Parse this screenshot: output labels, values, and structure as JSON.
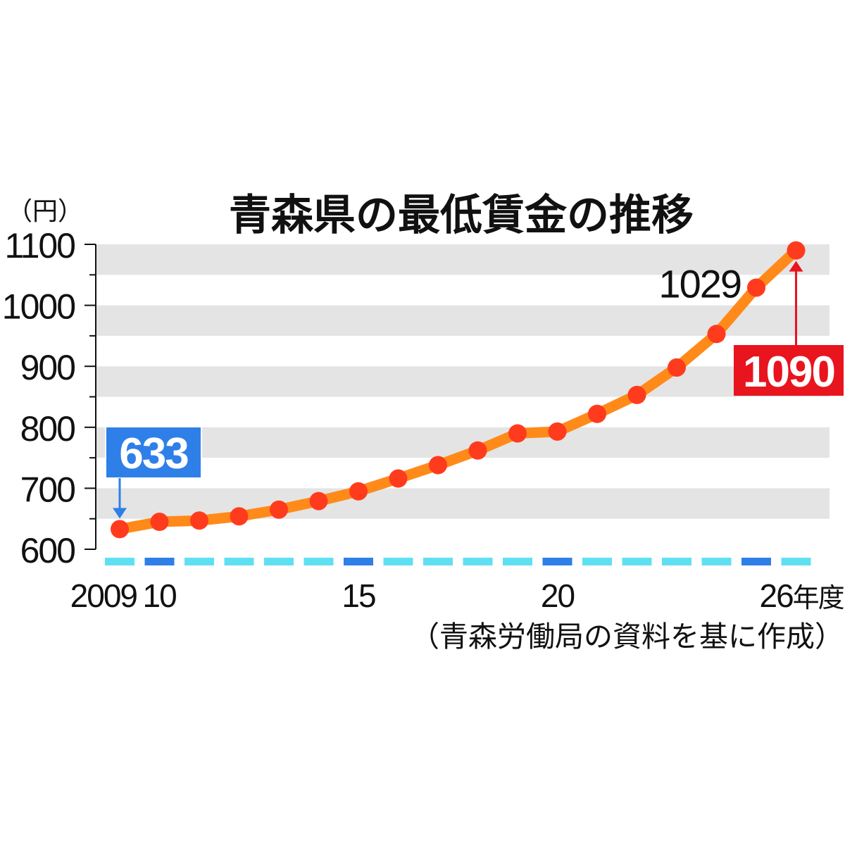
{
  "chart_data": {
    "type": "line",
    "title": "青森県の最低賃金の推移",
    "y_unit": "（円）",
    "source_note": "（青森労働局の資料を基に作成）",
    "x": [
      2009,
      2010,
      2011,
      2012,
      2013,
      2014,
      2015,
      2016,
      2017,
      2018,
      2019,
      2020,
      2021,
      2022,
      2023,
      2024,
      2025,
      2026
    ],
    "values": [
      633,
      645,
      647,
      654,
      665,
      679,
      695,
      716,
      738,
      762,
      790,
      793,
      822,
      853,
      898,
      953,
      1029,
      1090
    ],
    "ylim": [
      600,
      1100
    ],
    "y_ticks": [
      600,
      700,
      800,
      900,
      1000,
      1100
    ],
    "x_tick_labels": [
      {
        "x": 2009,
        "label": "2009"
      },
      {
        "x": 2010,
        "label": "10"
      },
      {
        "x": 2015,
        "label": "15"
      },
      {
        "x": 2020,
        "label": "20"
      },
      {
        "x": 2026,
        "label": "26",
        "suffix": "年度"
      }
    ],
    "annotations": {
      "start": {
        "x": 2009,
        "label": "633",
        "color": "#2f7fe8"
      },
      "prev": {
        "x": 2025,
        "label": "1029"
      },
      "end": {
        "x": 2026,
        "label": "1090",
        "color": "#e8141e"
      }
    },
    "line_color": "#ff8a1a",
    "marker_color": "#ff3b1e",
    "band_color": "#e4e4e4",
    "grid": "horizontal-bands",
    "legend": "none"
  }
}
